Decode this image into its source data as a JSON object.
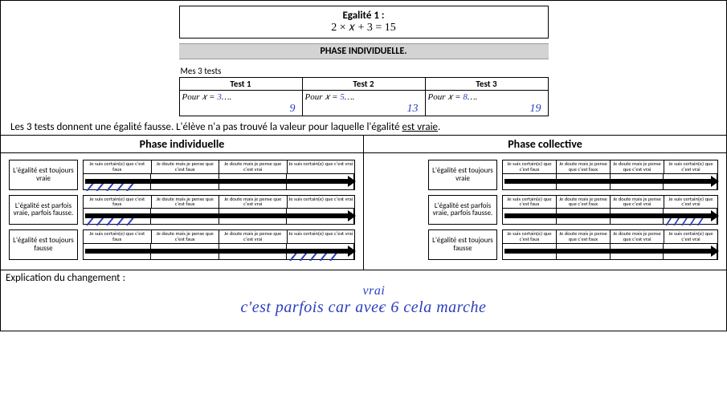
{
  "header": {
    "title": "Egalité 1 :",
    "formula": "2 × 𝑥 + 3 = 15",
    "phase_banner": "PHASE INDIVIDUELLE."
  },
  "tests": {
    "caption": "Mes 3 tests",
    "columns": [
      "Test 1",
      "Test 2",
      "Test 3"
    ],
    "prefix": "Pour  𝑥 = ",
    "typed_suffix": "….",
    "student_x": [
      "3",
      "5",
      "8"
    ],
    "student_result": [
      "9",
      "13",
      "19"
    ]
  },
  "note_text": "Les 3 tests donnent une égalité fausse. L'élève n'a pas trouvé la valeur pour laquelle l'égalité est  vraie.",
  "phases": {
    "left_title": "Phase individuelle",
    "right_title": "Phase collective"
  },
  "likert": {
    "row_labels": [
      "L'égalité est toujours vraie",
      "L'égalité est parfois vraie, parfois fausse.",
      "L'égalité est toujours fausse"
    ],
    "scale_headers": [
      "Je suis certain(e) que c'est faux",
      "Je doute mais je pense que c'est faux",
      "Je doute mais je pense que c'est vrai",
      "Je suis certain(e) que c'est vrai"
    ],
    "hatch_color": "#2a3fbf",
    "individual_marks": [
      0,
      0,
      3
    ],
    "collective_marks": [
      null,
      3,
      null
    ]
  },
  "explanation": {
    "label": "Explication du changement :",
    "inserted_word": "vrai",
    "text": "c'est parfois     car avec 6 cela marche"
  },
  "style": {
    "hand_color": "#2a3fbf",
    "background": "#ffffff",
    "border_color": "#000000"
  }
}
